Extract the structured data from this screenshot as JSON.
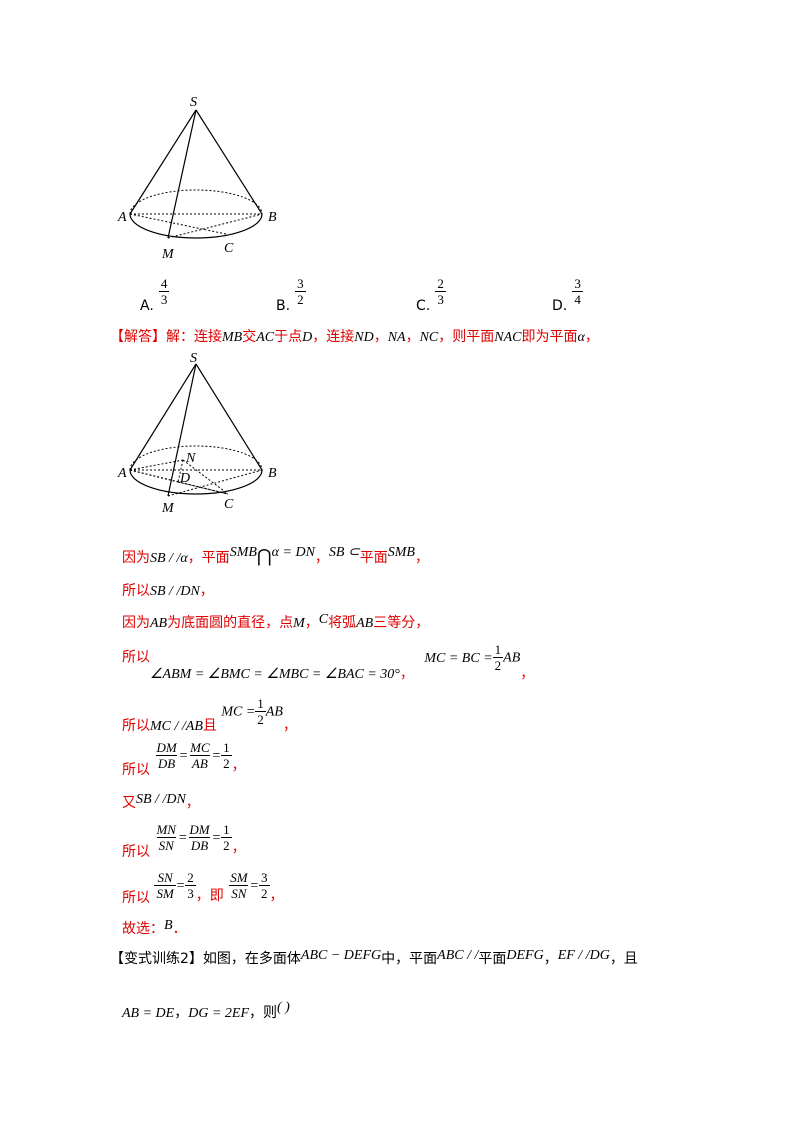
{
  "figure1": {
    "labels": {
      "S": "S",
      "A": "A",
      "B": "B",
      "M": "M",
      "C": "C"
    }
  },
  "options": [
    {
      "letter": "A.",
      "num": "4",
      "den": "3"
    },
    {
      "letter": "B.",
      "num": "3",
      "den": "2"
    },
    {
      "letter": "C.",
      "num": "2",
      "den": "3"
    },
    {
      "letter": "D.",
      "num": "3",
      "den": "4"
    }
  ],
  "answer_header": {
    "tag": "【解答】",
    "t1": "解：连接",
    "mb": "MB",
    "t2": "交",
    "ac": "AC",
    "t3": "于点",
    "d": "D",
    "t4": "，连接",
    "nd": "ND",
    "c1": "，",
    "na": "NA",
    "c2": "，",
    "nc": "NC",
    "t5": "，则平面",
    "nac": "NAC",
    "t6": "即为平面",
    "alpha": "α",
    "t7": "，"
  },
  "figure2": {
    "labels": {
      "S": "S",
      "A": "A",
      "B": "B",
      "M": "M",
      "C": "C",
      "N": "N",
      "D": "D"
    }
  },
  "steps": {
    "s1": {
      "a": "因为",
      "b": "SB / /α",
      "c": "，平面",
      "d": "SMB",
      "e": "⋂",
      "f": "α = DN",
      "g": "，",
      "h": "SB ⊂",
      "i": "平面",
      "j": "SMB",
      "k": "，"
    },
    "s2": {
      "a": "所以",
      "b": "SB / /DN",
      "c": "，"
    },
    "s3": {
      "a": "因为",
      "b": "AB",
      "c": "为底面圆的直径，点",
      "d": "M",
      "e": "，",
      "f": "C",
      "g": "将弧",
      "h": "AB",
      "i": "三等分，"
    },
    "s4": {
      "a": "所以",
      "b": "∠ABM = ∠BMC = ∠MBC = ∠BAC = 30°",
      "c": "，",
      "d": "MC = BC =",
      "n": "1",
      "den": "2",
      "e": "AB",
      "f": "，"
    },
    "s5": {
      "a": "所以",
      "b": "MC / /AB",
      "c": "且",
      "d": "MC =",
      "n": "1",
      "den": "2",
      "e": "AB",
      "f": "，"
    },
    "s6": {
      "a": "所以",
      "n1": "DM",
      "d1": "DB",
      "eq1": "=",
      "n2": "MC",
      "d2": "AB",
      "eq2": "=",
      "n3": "1",
      "d3": "2",
      "f": "，"
    },
    "s7": {
      "a": "又",
      "b": "SB / /DN",
      "c": "，"
    },
    "s8": {
      "a": "所以",
      "n1": "MN",
      "d1": "SN",
      "eq1": "=",
      "n2": "DM",
      "d2": "DB",
      "eq2": "=",
      "n3": "1",
      "d3": "2",
      "f": "，"
    },
    "s9": {
      "a": "所以",
      "n1": "SN",
      "d1": "SM",
      "eq1": "=",
      "n2": "2",
      "d2": "3",
      "b": "，即",
      "n3": "SM",
      "d3": "SN",
      "eq2": "=",
      "n4": "3",
      "d4": "2",
      "f": "，"
    },
    "s10": {
      "a": "故选：",
      "b": "B",
      "c": "．"
    }
  },
  "variant": {
    "tag": "【变式训练2】",
    "t1": "如图，在多面体",
    "m1": "ABC − DEFG",
    "t2": "中，平面",
    "m2": "ABC / /",
    "t3": "平面",
    "m3": "DEFG",
    "t4": "，",
    "m4": "EF / /DG",
    "t5": "，且",
    "m5": "AB = DE",
    "t6": "，",
    "m6": "DG = 2EF",
    "t7": "，则",
    "paren": "(        )"
  }
}
